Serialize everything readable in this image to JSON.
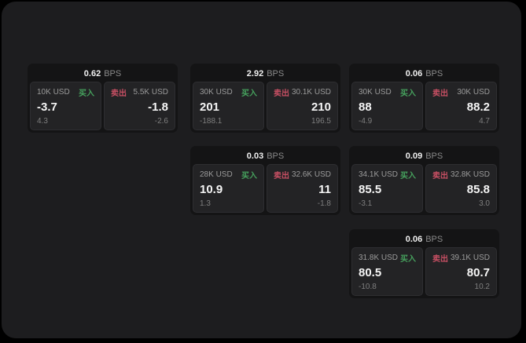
{
  "labels": {
    "buy": "买入",
    "sell": "卖出",
    "bps": "BPS"
  },
  "colors": {
    "buy": "#46a15d",
    "sell": "#c64f63",
    "surface": "#1d1d1f",
    "card": "#141415",
    "panel": "#232325"
  },
  "cards": [
    {
      "bps": "0.62",
      "buy": {
        "notional": "10K USD",
        "value": "-3.7",
        "delta": "4.3"
      },
      "sell": {
        "notional": "5.5K USD",
        "value": "-1.8",
        "delta": "-2.6"
      }
    },
    {
      "bps": "2.92",
      "buy": {
        "notional": "30K USD",
        "value": "201",
        "delta": "-188.1"
      },
      "sell": {
        "notional": "30.1K USD",
        "value": "210",
        "delta": "196.5"
      }
    },
    {
      "bps": "0.06",
      "buy": {
        "notional": "30K USD",
        "value": "88",
        "delta": "-4.9"
      },
      "sell": {
        "notional": "30K USD",
        "value": "88.2",
        "delta": "4.7"
      }
    },
    {
      "bps": "0.03",
      "buy": {
        "notional": "28K USD",
        "value": "10.9",
        "delta": "1.3"
      },
      "sell": {
        "notional": "32.6K USD",
        "value": "11",
        "delta": "-1.8"
      }
    },
    {
      "bps": "0.09",
      "buy": {
        "notional": "34.1K USD",
        "value": "85.5",
        "delta": "-3.1"
      },
      "sell": {
        "notional": "32.8K USD",
        "value": "85.8",
        "delta": "3.0"
      }
    },
    {
      "bps": "0.06",
      "buy": {
        "notional": "31.8K USD",
        "value": "80.5",
        "delta": "-10.8"
      },
      "sell": {
        "notional": "39.1K USD",
        "value": "80.7",
        "delta": "10.2"
      }
    }
  ]
}
